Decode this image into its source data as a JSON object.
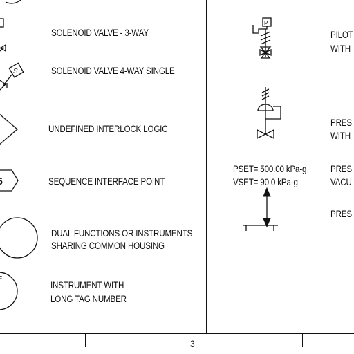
{
  "left_column": [
    {
      "id": "solenoid_3way",
      "lines": [
        "SOLENOID VALVE - 3-WAY"
      ]
    },
    {
      "id": "solenoid_4way",
      "lines": [
        "SOLENOID VALVE 4-WAY SINGLE"
      ],
      "tag": "S"
    },
    {
      "id": "interlock",
      "lines": [
        "UNDEFINED INTERLOCK LOGIC"
      ]
    },
    {
      "id": "sequence",
      "lines": [
        "SEQUENCE INTERFACE POINT"
      ],
      "tag": "5"
    },
    {
      "id": "dual",
      "lines": [
        "DUAL FUNCTIONS OR INSTRUMENTS",
        "SHARING COMMON HOUSING"
      ]
    },
    {
      "id": "long_tag",
      "lines": [
        "INSTRUMENT WITH",
        "LONG TAG NUMBER"
      ]
    }
  ],
  "right_column": [
    {
      "id": "pilot",
      "lines": [
        "PILOT",
        "WITH"
      ],
      "tag": "P"
    },
    {
      "id": "pressure",
      "lines": [
        "PRES",
        "WITH"
      ]
    },
    {
      "id": "pset_vset",
      "lines": [
        "PRES",
        "VACU"
      ],
      "settings": [
        "PSET= 500.00 kPa-g",
        "VSET= 90.0 kPa-g"
      ]
    },
    {
      "id": "pres3",
      "lines": [
        "PRES"
      ]
    }
  ],
  "footer": {
    "page_number": "3"
  }
}
